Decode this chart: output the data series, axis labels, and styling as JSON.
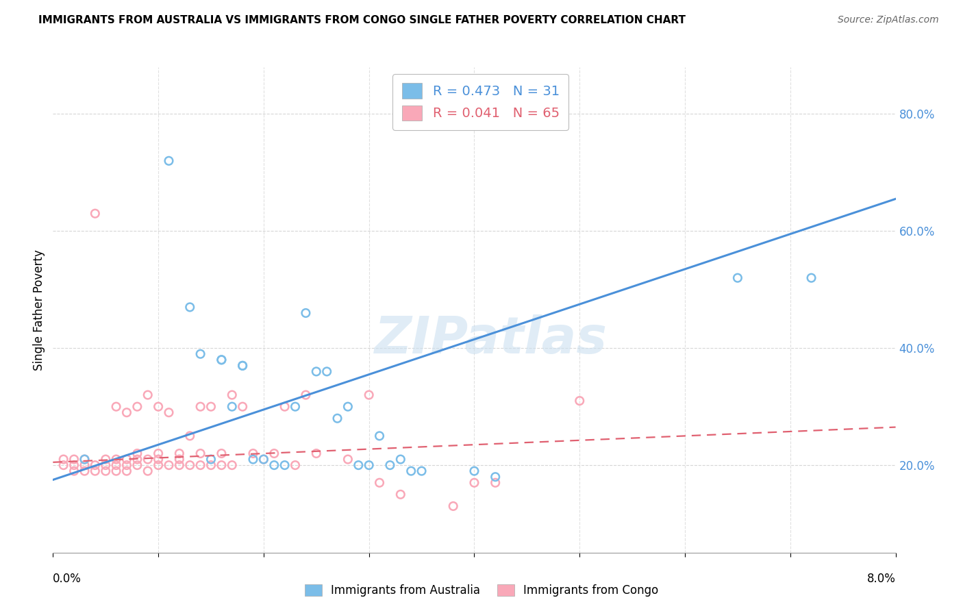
{
  "title": "IMMIGRANTS FROM AUSTRALIA VS IMMIGRANTS FROM CONGO SINGLE FATHER POVERTY CORRELATION CHART",
  "source": "Source: ZipAtlas.com",
  "ylabel": "Single Father Poverty",
  "ylabel_right_ticks": [
    "20.0%",
    "40.0%",
    "60.0%",
    "80.0%"
  ],
  "ylabel_right_vals": [
    0.2,
    0.4,
    0.6,
    0.8
  ],
  "x_min": 0.0,
  "x_max": 0.08,
  "y_min": 0.05,
  "y_max": 0.88,
  "R_australia": 0.473,
  "N_australia": 31,
  "R_congo": 0.041,
  "N_congo": 65,
  "australia_color": "#7bbde8",
  "congo_color": "#f9a8b8",
  "australia_line_color": "#4a90d9",
  "congo_line_color": "#e06070",
  "watermark": "ZIPatlas",
  "australia_points_x": [
    0.003,
    0.011,
    0.013,
    0.014,
    0.015,
    0.016,
    0.016,
    0.017,
    0.018,
    0.018,
    0.019,
    0.02,
    0.021,
    0.022,
    0.023,
    0.024,
    0.025,
    0.026,
    0.027,
    0.028,
    0.029,
    0.03,
    0.031,
    0.032,
    0.033,
    0.034,
    0.035,
    0.04,
    0.042,
    0.065,
    0.072
  ],
  "australia_points_y": [
    0.21,
    0.72,
    0.47,
    0.39,
    0.21,
    0.38,
    0.38,
    0.3,
    0.37,
    0.37,
    0.21,
    0.21,
    0.2,
    0.2,
    0.3,
    0.46,
    0.36,
    0.36,
    0.28,
    0.3,
    0.2,
    0.2,
    0.25,
    0.2,
    0.21,
    0.19,
    0.19,
    0.19,
    0.18,
    0.52,
    0.52
  ],
  "congo_points_x": [
    0.001,
    0.001,
    0.002,
    0.002,
    0.002,
    0.003,
    0.003,
    0.003,
    0.004,
    0.004,
    0.004,
    0.005,
    0.005,
    0.005,
    0.006,
    0.006,
    0.006,
    0.006,
    0.007,
    0.007,
    0.007,
    0.007,
    0.008,
    0.008,
    0.008,
    0.008,
    0.009,
    0.009,
    0.009,
    0.01,
    0.01,
    0.01,
    0.01,
    0.011,
    0.011,
    0.012,
    0.012,
    0.012,
    0.013,
    0.013,
    0.014,
    0.014,
    0.014,
    0.015,
    0.015,
    0.016,
    0.016,
    0.017,
    0.017,
    0.018,
    0.019,
    0.02,
    0.021,
    0.022,
    0.023,
    0.024,
    0.025,
    0.028,
    0.03,
    0.031,
    0.033,
    0.038,
    0.04,
    0.042,
    0.05
  ],
  "congo_points_y": [
    0.2,
    0.21,
    0.19,
    0.2,
    0.21,
    0.19,
    0.2,
    0.21,
    0.19,
    0.2,
    0.63,
    0.19,
    0.2,
    0.21,
    0.19,
    0.2,
    0.21,
    0.3,
    0.19,
    0.2,
    0.21,
    0.29,
    0.2,
    0.21,
    0.22,
    0.3,
    0.19,
    0.21,
    0.32,
    0.2,
    0.21,
    0.22,
    0.3,
    0.2,
    0.29,
    0.2,
    0.21,
    0.22,
    0.2,
    0.25,
    0.2,
    0.22,
    0.3,
    0.2,
    0.3,
    0.2,
    0.22,
    0.2,
    0.32,
    0.3,
    0.22,
    0.21,
    0.22,
    0.3,
    0.2,
    0.32,
    0.22,
    0.21,
    0.32,
    0.17,
    0.15,
    0.13,
    0.17,
    0.17,
    0.31
  ],
  "aus_line_x": [
    0.0,
    0.08
  ],
  "aus_line_y": [
    0.175,
    0.655
  ],
  "congo_line_x": [
    0.0,
    0.08
  ],
  "congo_line_y": [
    0.205,
    0.265
  ],
  "marker_size": 70
}
